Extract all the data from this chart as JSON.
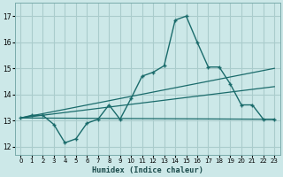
{
  "xlabel": "Humidex (Indice chaleur)",
  "background_color": "#cce8e8",
  "grid_color": "#aacccc",
  "line_color": "#1a6b6b",
  "xlim": [
    -0.5,
    23.5
  ],
  "ylim": [
    11.7,
    17.5
  ],
  "xticks": [
    0,
    1,
    2,
    3,
    4,
    5,
    6,
    7,
    8,
    9,
    10,
    11,
    12,
    13,
    14,
    15,
    16,
    17,
    18,
    19,
    20,
    21,
    22,
    23
  ],
  "yticks": [
    12,
    13,
    14,
    15,
    16,
    17
  ],
  "main_x": [
    0,
    1,
    2,
    3,
    4,
    5,
    6,
    7,
    8,
    9,
    10,
    11,
    12,
    13,
    14,
    15,
    16,
    17,
    18,
    19,
    20,
    21,
    22,
    23
  ],
  "main_y": [
    13.1,
    13.2,
    13.2,
    12.85,
    12.15,
    12.3,
    12.9,
    13.05,
    13.6,
    13.05,
    13.85,
    14.7,
    14.85,
    15.1,
    16.85,
    17.0,
    16.0,
    15.05,
    15.05,
    14.4,
    13.6,
    13.6,
    13.05,
    13.05
  ],
  "line1_x": [
    0,
    23
  ],
  "line1_y": [
    13.1,
    13.05
  ],
  "line2_x": [
    0,
    23
  ],
  "line2_y": [
    13.1,
    15.0
  ],
  "line3_x": [
    0,
    23
  ],
  "line3_y": [
    13.1,
    14.3
  ]
}
